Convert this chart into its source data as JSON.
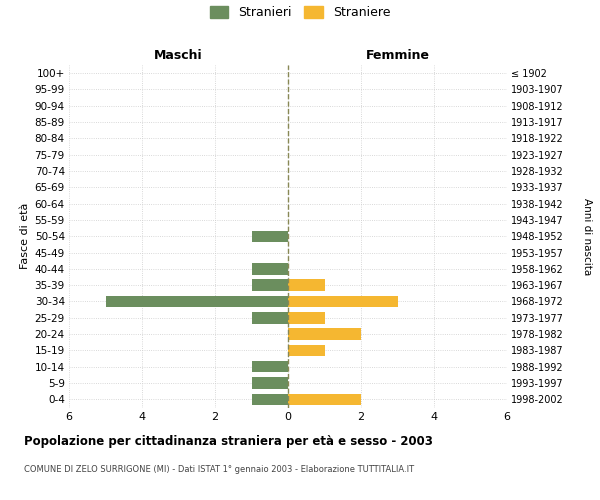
{
  "age_groups": [
    "0-4",
    "5-9",
    "10-14",
    "15-19",
    "20-24",
    "25-29",
    "30-34",
    "35-39",
    "40-44",
    "45-49",
    "50-54",
    "55-59",
    "60-64",
    "65-69",
    "70-74",
    "75-79",
    "80-84",
    "85-89",
    "90-94",
    "95-99",
    "100+"
  ],
  "birth_years": [
    "1998-2002",
    "1993-1997",
    "1988-1992",
    "1983-1987",
    "1978-1982",
    "1973-1977",
    "1968-1972",
    "1963-1967",
    "1958-1962",
    "1953-1957",
    "1948-1952",
    "1943-1947",
    "1938-1942",
    "1933-1937",
    "1928-1932",
    "1923-1927",
    "1918-1922",
    "1913-1917",
    "1908-1912",
    "1903-1907",
    "≤ 1902"
  ],
  "maschi": [
    1,
    1,
    1,
    0,
    0,
    1,
    5,
    1,
    1,
    0,
    1,
    0,
    0,
    0,
    0,
    0,
    0,
    0,
    0,
    0,
    0
  ],
  "femmine": [
    2,
    0,
    0,
    1,
    2,
    1,
    3,
    1,
    0,
    0,
    0,
    0,
    0,
    0,
    0,
    0,
    0,
    0,
    0,
    0,
    0
  ],
  "color_maschi": "#6b8e5e",
  "color_femmine": "#f5b731",
  "title_main": "Popolazione per cittadinanza straniera per età e sesso - 2003",
  "title_sub": "COMUNE DI ZELO SURRIGONE (MI) - Dati ISTAT 1° gennaio 2003 - Elaborazione TUTTITALIA.IT",
  "legend_maschi": "Stranieri",
  "legend_femmine": "Straniere",
  "xlabel_left": "Maschi",
  "xlabel_right": "Femmine",
  "ylabel_left": "Fasce di età",
  "ylabel_right": "Anni di nascita",
  "xlim": 6,
  "background_color": "#ffffff",
  "grid_color": "#cccccc",
  "dashed_line_color": "#888855"
}
